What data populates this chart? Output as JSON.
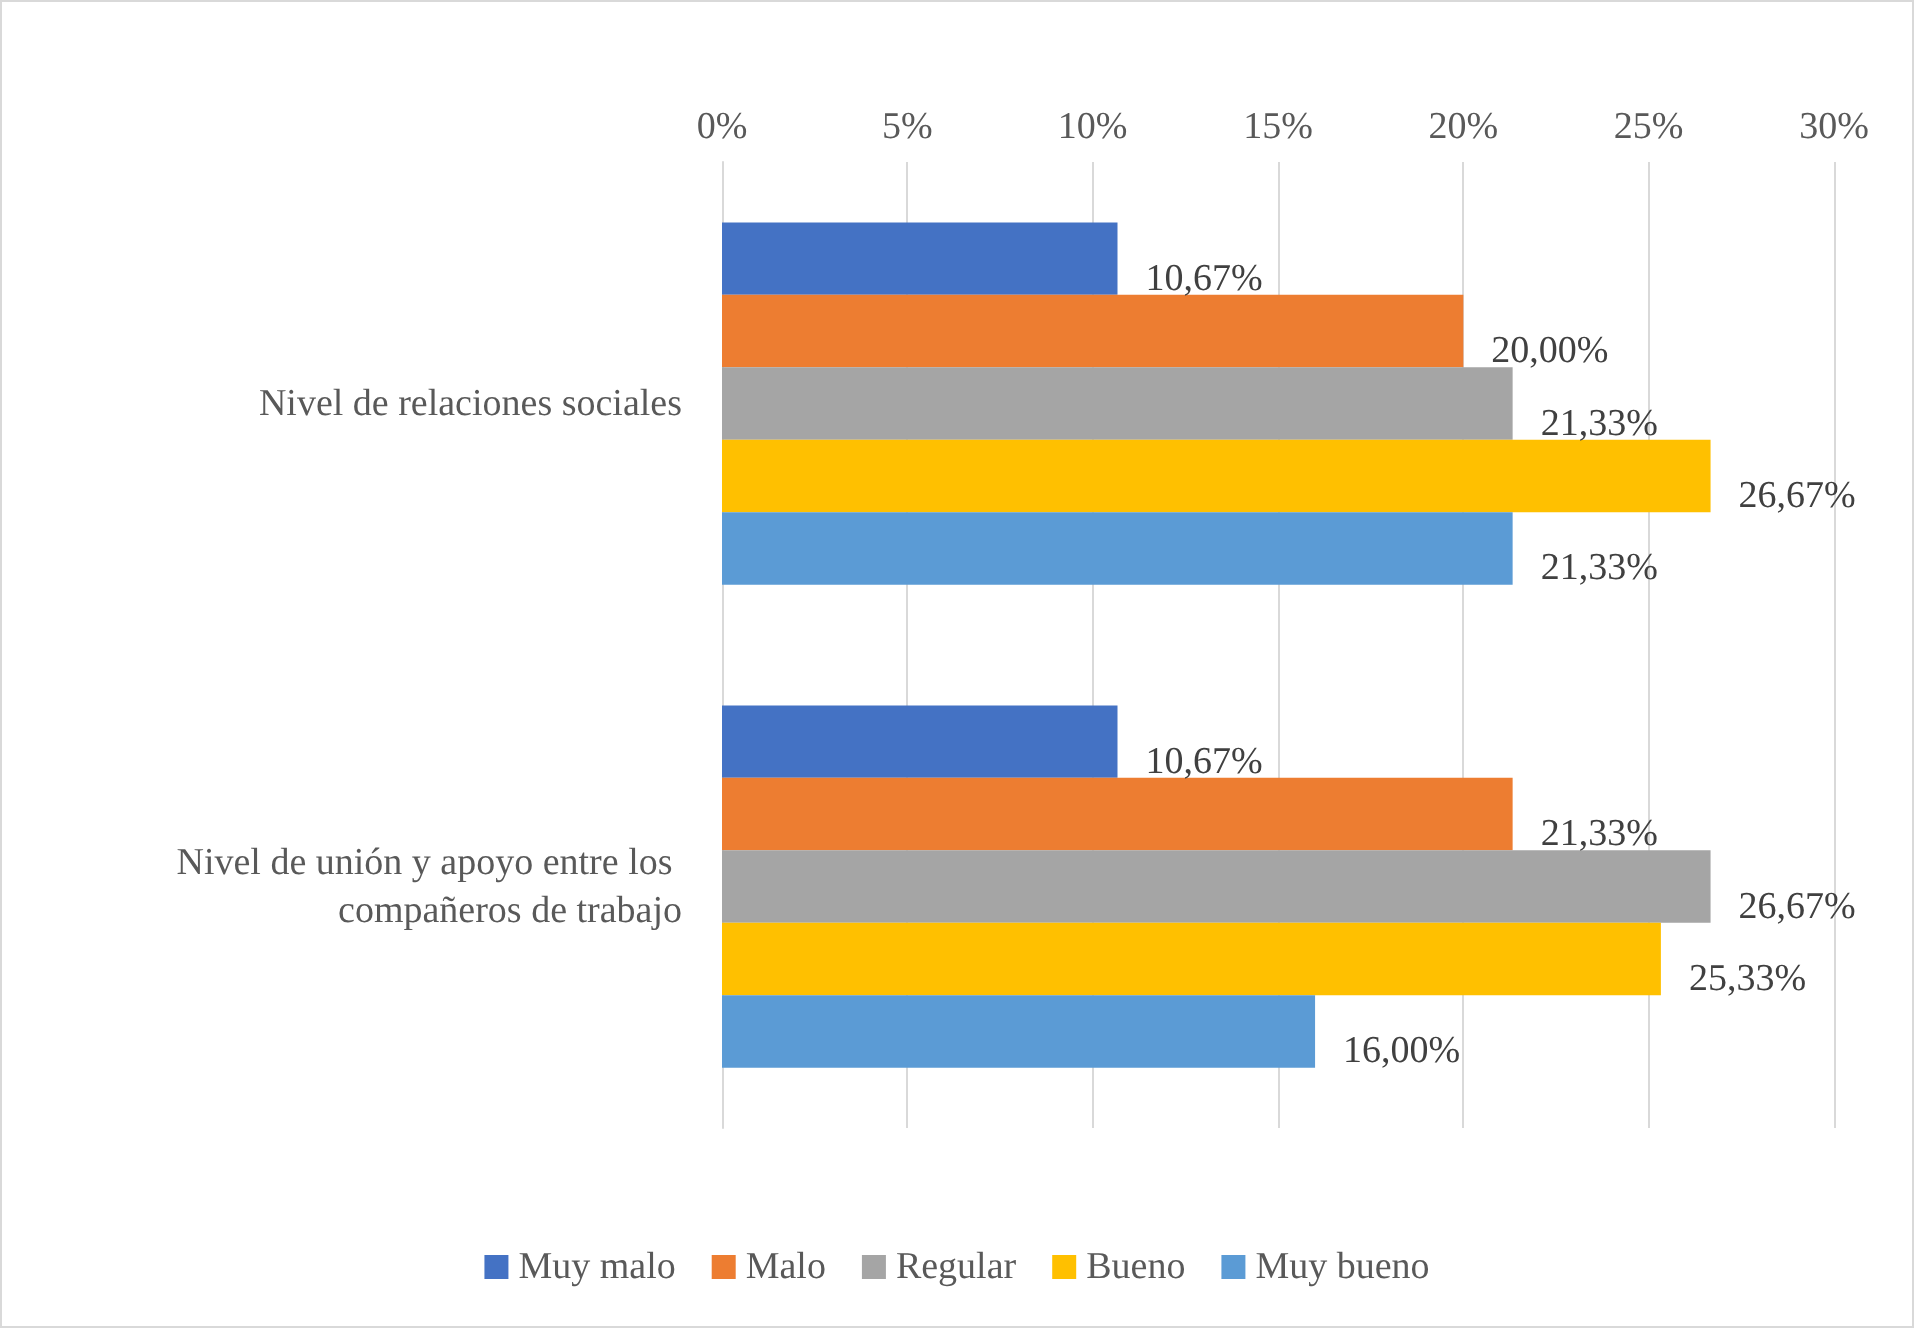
{
  "chart_data": {
    "type": "bar",
    "orientation": "horizontal",
    "categories": [
      "Nivel de relaciones sociales",
      "Nivel de unión y apoyo entre los compañeros de trabajo"
    ],
    "series": [
      {
        "name": "Muy malo",
        "color": "#4472c4",
        "values": [
          10.67,
          10.67
        ],
        "value_labels": [
          "10,67%",
          "10,67%"
        ]
      },
      {
        "name": "Malo",
        "color": "#ed7d31",
        "values": [
          20.0,
          21.33
        ],
        "value_labels": [
          "20,00%",
          "21,33%"
        ]
      },
      {
        "name": "Regular",
        "color": "#a5a5a5",
        "values": [
          21.33,
          26.67
        ],
        "value_labels": [
          "21,33%",
          "26,67%"
        ]
      },
      {
        "name": "Bueno",
        "color": "#ffc000",
        "values": [
          26.67,
          25.33
        ],
        "value_labels": [
          "26,67%",
          "25,33%"
        ]
      },
      {
        "name": "Muy bueno",
        "color": "#5b9bd5",
        "values": [
          21.33,
          16.0
        ],
        "value_labels": [
          "21,33%",
          "16,00%"
        ]
      }
    ],
    "xlim": [
      0,
      30
    ],
    "xticks": [
      {
        "value": 0,
        "label": "0%"
      },
      {
        "value": 5,
        "label": "5%"
      },
      {
        "value": 10,
        "label": "10%"
      },
      {
        "value": 15,
        "label": "15%"
      },
      {
        "value": 20,
        "label": "20%"
      },
      {
        "value": 25,
        "label": "25%"
      },
      {
        "value": 30,
        "label": "30%"
      }
    ],
    "grid": "x",
    "legend": "bottom"
  }
}
